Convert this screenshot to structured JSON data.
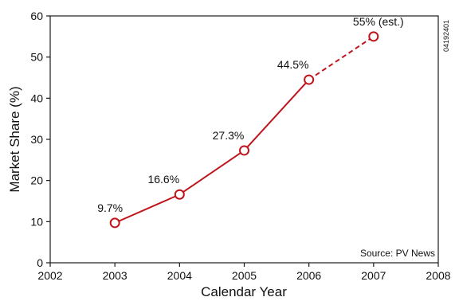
{
  "chart_data": {
    "type": "line",
    "xlabel": "Calendar Year",
    "ylabel": "Market Share (%)",
    "xlim": [
      2002,
      2008
    ],
    "ylim": [
      0,
      60
    ],
    "xticks": [
      "2002",
      "2003",
      "2004",
      "2005",
      "2006",
      "2007",
      "2008"
    ],
    "yticks": [
      "0",
      "10",
      "20",
      "30",
      "40",
      "50",
      "60"
    ],
    "grid": false,
    "series": [
      {
        "x": [
          2003,
          2004,
          2005,
          2006,
          2007
        ],
        "y": [
          9.7,
          16.6,
          27.3,
          44.5,
          55
        ],
        "labels": [
          "9.7%",
          "16.6%",
          "27.3%",
          "44.5%",
          "55% (est.)"
        ],
        "estimated_from_index": 3,
        "line_style": "solid",
        "estimate_line_style": "dashed",
        "marker": "open-circle",
        "color": "#c0141c"
      }
    ],
    "annotations": {
      "source": "Source: PV News",
      "figure_id": "04192401"
    }
  }
}
